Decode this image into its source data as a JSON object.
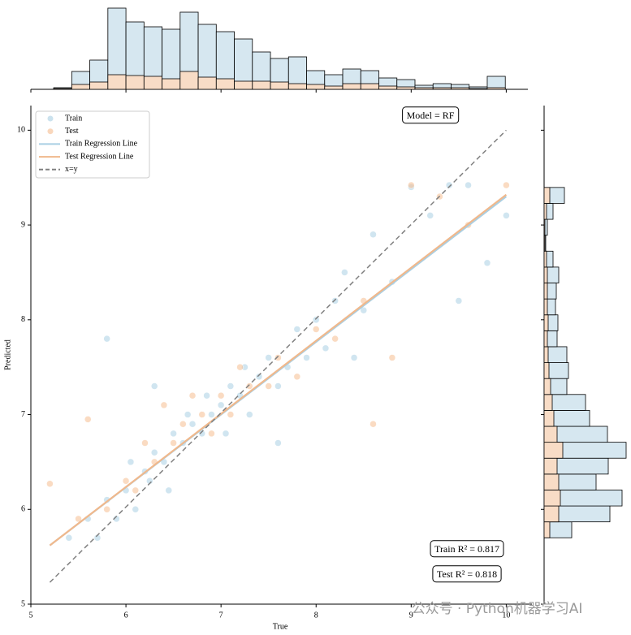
{
  "chart_data": [
    {
      "type": "scatter",
      "xlabel": "True",
      "ylabel": "Predicted",
      "xlim": [
        5,
        10.27
      ],
      "ylim": [
        5,
        10.26
      ],
      "xticks": [
        5,
        6,
        7,
        8,
        9,
        10
      ],
      "yticks": [
        5,
        6,
        7,
        8,
        9,
        10
      ],
      "legend": "upper left",
      "series": [
        {
          "name": "Train",
          "color": "#a9cfe3",
          "style": "points",
          "x": [
            5.4,
            5.6,
            5.7,
            5.8,
            5.9,
            6.0,
            6.05,
            6.1,
            6.2,
            6.25,
            6.3,
            6.4,
            6.45,
            6.5,
            6.6,
            6.65,
            6.7,
            6.8,
            6.85,
            6.9,
            7.0,
            7.05,
            7.1,
            7.2,
            7.25,
            7.3,
            7.4,
            7.5,
            7.6,
            7.7,
            7.8,
            7.9,
            8.0,
            8.1,
            8.2,
            8.3,
            8.5,
            8.6,
            8.8,
            9.0,
            9.2,
            9.4,
            9.6,
            9.8,
            10.0,
            5.8,
            6.3,
            7.6,
            8.4,
            9.5
          ],
          "y": [
            5.7,
            5.9,
            5.7,
            6.1,
            5.9,
            6.2,
            6.5,
            6.0,
            6.4,
            6.3,
            6.6,
            6.5,
            6.2,
            6.8,
            6.7,
            7.0,
            6.9,
            6.8,
            7.2,
            7.0,
            7.1,
            6.8,
            7.3,
            7.2,
            7.5,
            7.0,
            7.4,
            7.6,
            7.3,
            7.5,
            7.9,
            7.6,
            8.0,
            7.7,
            8.2,
            8.5,
            8.1,
            8.9,
            8.4,
            9.4,
            9.1,
            9.42,
            9.42,
            8.6,
            9.1,
            7.8,
            7.3,
            6.7,
            7.6,
            8.2
          ]
        },
        {
          "name": "Test",
          "color": "#f5bd90",
          "style": "points",
          "x": [
            5.2,
            5.5,
            5.6,
            5.8,
            6.0,
            6.1,
            6.2,
            6.3,
            6.4,
            6.5,
            6.6,
            6.7,
            6.8,
            6.9,
            7.0,
            7.1,
            7.2,
            7.3,
            7.5,
            7.6,
            7.8,
            8.0,
            8.2,
            8.5,
            8.8,
            9.0,
            9.3,
            9.6,
            10.0,
            8.6
          ],
          "y": [
            6.27,
            5.9,
            6.95,
            6.0,
            6.3,
            6.2,
            6.7,
            6.5,
            7.1,
            6.7,
            6.9,
            7.2,
            7.0,
            6.8,
            7.2,
            7.0,
            7.5,
            7.3,
            7.3,
            7.6,
            7.4,
            7.9,
            7.8,
            8.2,
            7.6,
            9.42,
            9.3,
            9.0,
            9.42,
            6.9
          ]
        },
        {
          "name": "Train Regression Line",
          "color": "#a9cfe3",
          "style": "line",
          "x": [
            5.2,
            10
          ],
          "y": [
            5.62,
            9.3
          ]
        },
        {
          "name": "Test Regression Line",
          "color": "#f0b88c",
          "style": "line",
          "x": [
            5.2,
            10
          ],
          "y": [
            5.62,
            9.32
          ]
        },
        {
          "name": "x=y",
          "color": "#808080",
          "style": "dashed",
          "x": [
            5.2,
            10
          ],
          "y": [
            5.23,
            10
          ]
        }
      ],
      "annotations": [
        "Model = RF",
        "Train R² = 0.817",
        "Test R² = 0.818"
      ]
    },
    {
      "type": "histogram",
      "orientation": "vertical",
      "ylim": [
        0,
        100
      ],
      "bins": [
        5.24,
        5.43,
        5.62,
        5.81,
        6.0,
        6.19,
        6.38,
        6.57,
        6.76,
        6.95,
        7.14,
        7.33,
        7.52,
        7.71,
        7.9,
        8.09,
        8.28,
        8.47,
        8.66,
        8.85,
        9.04,
        9.23,
        9.42,
        9.61,
        9.8,
        9.99
      ],
      "series": [
        {
          "color": "#d6e7f0",
          "values": [
            2,
            22,
            36,
            100,
            83,
            77,
            74,
            95,
            80,
            71,
            62,
            46,
            38,
            40,
            23,
            18,
            25,
            23,
            14,
            12,
            5,
            7,
            6,
            3,
            16
          ]
        },
        {
          "color": "#f8dcc6",
          "values": [
            1,
            6,
            9,
            18,
            17,
            16,
            13,
            22,
            15,
            13,
            10,
            10,
            9,
            7,
            6,
            4,
            7,
            7,
            4,
            3,
            2,
            2,
            2,
            1,
            2
          ]
        }
      ]
    },
    {
      "type": "histogram",
      "orientation": "horizontal",
      "xlim": [
        0,
        105
      ],
      "bins": [
        5.7,
        5.868,
        6.036,
        6.204,
        6.372,
        6.54,
        6.708,
        6.876,
        7.044,
        7.212,
        7.38,
        7.548,
        7.716,
        7.884,
        8.052,
        8.22,
        8.388,
        8.556,
        8.724,
        8.892,
        9.06,
        9.228,
        9.396
      ],
      "series": [
        {
          "color": "#d6e7f0",
          "values": [
            34,
            81,
            96,
            64,
            79,
            101,
            78,
            56,
            51,
            28,
            30,
            28,
            16,
            17,
            14,
            15,
            18,
            11,
            2,
            4,
            11,
            25
          ]
        },
        {
          "color": "#f8dcc6",
          "values": [
            7,
            18,
            20,
            18,
            16,
            23,
            16,
            12,
            10,
            8,
            6,
            5,
            4,
            5,
            4,
            4,
            4,
            3,
            1,
            1,
            3,
            7
          ]
        }
      ]
    }
  ],
  "watermark": "公众号 · Python机器学习AI"
}
